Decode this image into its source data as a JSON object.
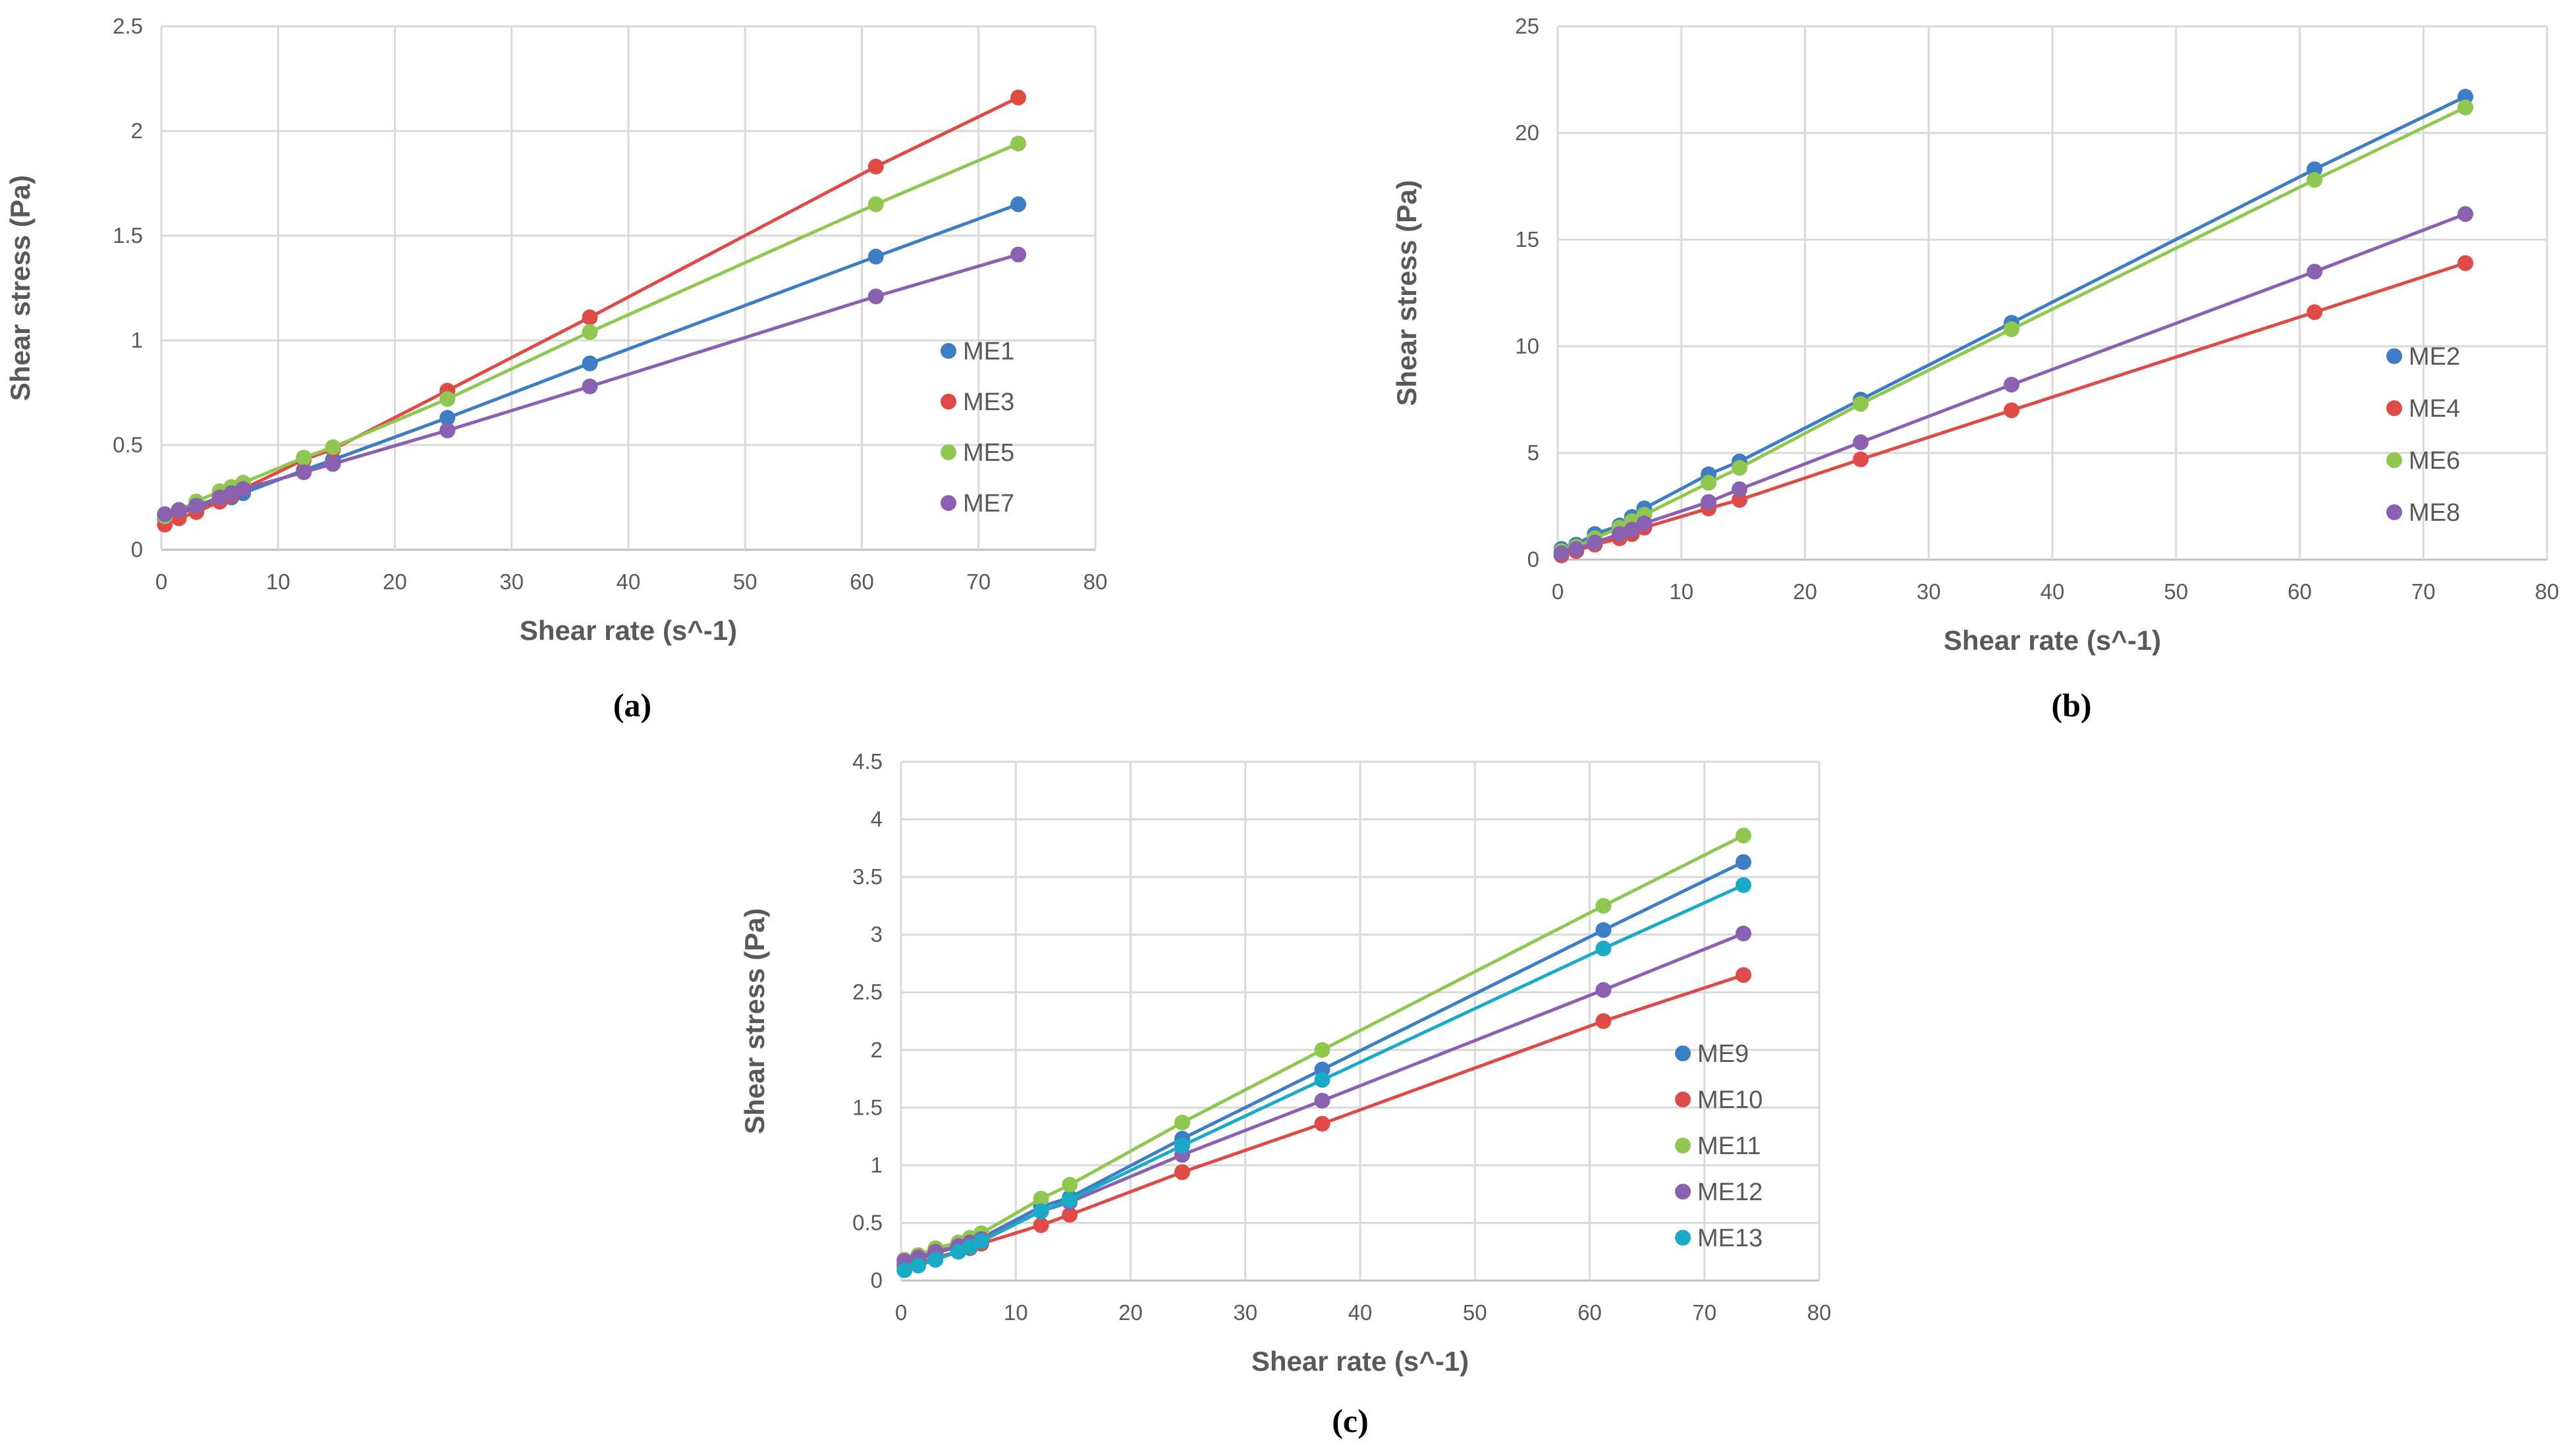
{
  "colors": {
    "blue": "#3C7DC4",
    "red": "#DE4B47",
    "green": "#8FC751",
    "purple": "#8A61B1",
    "cyan": "#1AA9C7",
    "grid": "#D9D9D9",
    "axis": "#BFBFBF"
  },
  "chart_data": [
    {
      "id": "a",
      "caption": "(a)",
      "type": "line",
      "xlabel": "Shear rate (s^-1)",
      "ylabel": "Shear stress (Pa)",
      "xlim": [
        0,
        80
      ],
      "ylim": [
        0,
        2.5
      ],
      "xticks": [
        0,
        10,
        20,
        30,
        40,
        50,
        60,
        70,
        80
      ],
      "yticks": [
        0,
        0.5,
        1,
        1.5,
        2,
        2.5
      ],
      "ytick_labels": [
        "0",
        "0.5",
        "1",
        "1.5",
        "2",
        "2.5"
      ],
      "legend_position": "right-middle",
      "x": [
        0.3,
        1.5,
        3,
        5,
        6,
        7,
        12.2,
        14.7,
        24.5,
        36.7,
        61.2,
        73.4
      ],
      "series": [
        {
          "name": "ME1",
          "color": "#3C7DC4",
          "values": [
            0.15,
            0.17,
            0.2,
            0.23,
            0.25,
            0.27,
            0.38,
            0.43,
            0.63,
            0.89,
            1.4,
            1.65
          ]
        },
        {
          "name": "ME3",
          "color": "#DE4B47",
          "values": [
            0.12,
            0.15,
            0.18,
            0.23,
            0.26,
            0.29,
            0.43,
            0.48,
            0.76,
            1.11,
            1.83,
            2.16
          ]
        },
        {
          "name": "ME5",
          "color": "#8FC751",
          "values": [
            0.16,
            0.19,
            0.23,
            0.28,
            0.3,
            0.32,
            0.44,
            0.49,
            0.72,
            1.04,
            1.65,
            1.94
          ]
        },
        {
          "name": "ME7",
          "color": "#8A61B1",
          "values": [
            0.17,
            0.19,
            0.21,
            0.25,
            0.27,
            0.29,
            0.37,
            0.41,
            0.57,
            0.78,
            1.21,
            1.41
          ]
        }
      ]
    },
    {
      "id": "b",
      "caption": "(b)",
      "type": "line",
      "xlabel": "Shear rate (s^-1)",
      "ylabel": "Shear stress (Pa)",
      "xlim": [
        0,
        80
      ],
      "ylim": [
        0,
        25
      ],
      "xticks": [
        0,
        10,
        20,
        30,
        40,
        50,
        60,
        70,
        80
      ],
      "yticks": [
        0,
        5,
        10,
        15,
        20,
        25
      ],
      "ytick_labels": [
        "0",
        "5",
        "10",
        "15",
        "20",
        "25"
      ],
      "legend_position": "right-middle",
      "x": [
        0.3,
        1.5,
        3,
        5,
        6,
        7,
        12.2,
        14.7,
        24.5,
        36.7,
        61.2,
        73.4
      ],
      "series": [
        {
          "name": "ME2",
          "color": "#3C7DC4",
          "values": [
            0.5,
            0.7,
            1.2,
            1.6,
            2.0,
            2.4,
            4.0,
            4.6,
            7.5,
            11.1,
            18.3,
            21.7
          ]
        },
        {
          "name": "ME4",
          "color": "#DE4B47",
          "values": [
            0.2,
            0.4,
            0.7,
            1.0,
            1.2,
            1.5,
            2.4,
            2.8,
            4.7,
            7.0,
            11.6,
            13.9
          ]
        },
        {
          "name": "ME6",
          "color": "#8FC751",
          "values": [
            0.4,
            0.6,
            1.0,
            1.5,
            1.8,
            2.1,
            3.6,
            4.3,
            7.3,
            10.8,
            17.8,
            21.2
          ]
        },
        {
          "name": "ME8",
          "color": "#8A61B1",
          "values": [
            0.3,
            0.5,
            0.8,
            1.2,
            1.4,
            1.7,
            2.7,
            3.3,
            5.5,
            8.2,
            13.5,
            16.2
          ]
        }
      ]
    },
    {
      "id": "c",
      "caption": "(c)",
      "type": "line",
      "xlabel": "Shear rate (s^-1)",
      "ylabel": "Shear stress (Pa)",
      "xlim": [
        0,
        80
      ],
      "ylim": [
        0,
        4.5
      ],
      "xticks": [
        0,
        10,
        20,
        30,
        40,
        50,
        60,
        70,
        80
      ],
      "yticks": [
        0,
        0.5,
        1,
        1.5,
        2,
        2.5,
        3,
        3.5,
        4,
        4.5
      ],
      "ytick_labels": [
        "0",
        "0.5",
        "1",
        "1.5",
        "2",
        "2.5",
        "3",
        "3.5",
        "4",
        "4.5"
      ],
      "legend_position": "right-middle",
      "x": [
        0.3,
        1.5,
        3,
        5,
        6,
        7,
        12.2,
        14.7,
        24.5,
        36.7,
        61.2,
        73.4
      ],
      "series": [
        {
          "name": "ME9",
          "color": "#3C7DC4",
          "values": [
            0.14,
            0.18,
            0.24,
            0.29,
            0.33,
            0.37,
            0.64,
            0.72,
            1.23,
            1.83,
            3.04,
            3.63
          ]
        },
        {
          "name": "ME10",
          "color": "#DE4B47",
          "values": [
            0.12,
            0.15,
            0.2,
            0.25,
            0.28,
            0.32,
            0.48,
            0.57,
            0.94,
            1.36,
            2.25,
            2.65
          ]
        },
        {
          "name": "ME11",
          "color": "#8FC751",
          "values": [
            0.18,
            0.22,
            0.28,
            0.33,
            0.37,
            0.41,
            0.71,
            0.83,
            1.37,
            2.0,
            3.25,
            3.86
          ]
        },
        {
          "name": "ME12",
          "color": "#8A61B1",
          "values": [
            0.17,
            0.2,
            0.25,
            0.3,
            0.33,
            0.36,
            0.6,
            0.68,
            1.09,
            1.56,
            2.52,
            3.01
          ]
        },
        {
          "name": "ME13",
          "color": "#1AA9C7",
          "values": [
            0.09,
            0.13,
            0.18,
            0.25,
            0.29,
            0.34,
            0.6,
            0.7,
            1.17,
            1.74,
            2.88,
            3.43
          ]
        }
      ]
    }
  ]
}
